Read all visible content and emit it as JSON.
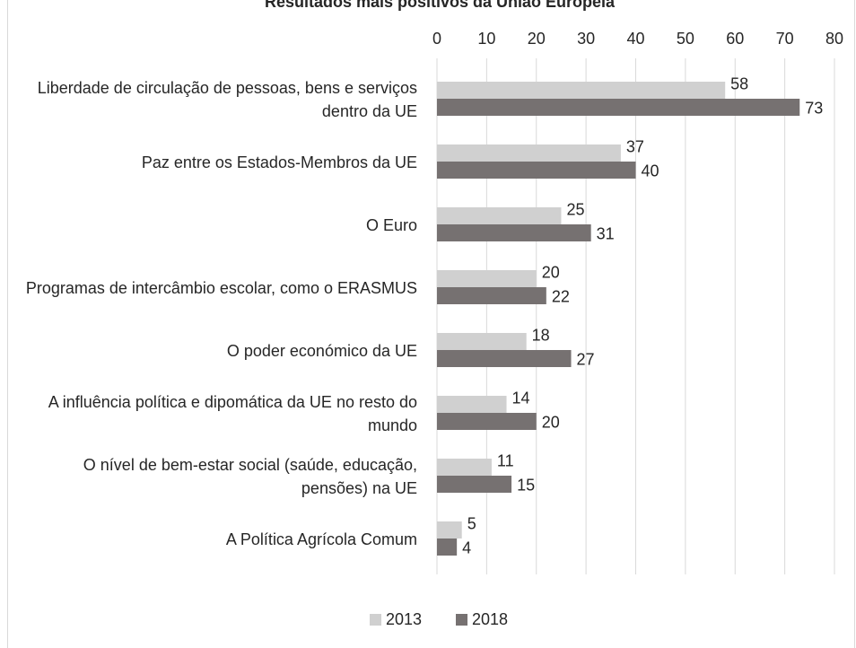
{
  "chart_data": {
    "type": "bar",
    "orientation": "horizontal",
    "title": "Resultados mais positivos da União Europeia",
    "categories": [
      "Liberdade de circulação de pessoas, bens e serviços dentro da UE",
      "Paz entre os Estados-Membros da UE",
      "O Euro",
      "Programas de intercâmbio escolar, como o ERASMUS",
      "O poder económico da UE",
      "A influência política e dipomática da UE no resto do mundo",
      "O nível de bem-estar social (saúde, educação, pensões) na UE",
      "A Política Agrícola Comum"
    ],
    "series": [
      {
        "name": "2013",
        "color": "#d0d0d0",
        "values": [
          58,
          37,
          25,
          20,
          18,
          14,
          11,
          5
        ]
      },
      {
        "name": "2018",
        "color": "#767171",
        "values": [
          73,
          40,
          31,
          22,
          27,
          20,
          15,
          4
        ]
      }
    ],
    "xlim": [
      0,
      80
    ],
    "xticks": [
      0,
      10,
      20,
      30,
      40,
      50,
      60,
      70,
      80
    ],
    "grid": true,
    "legend": "bottom"
  }
}
